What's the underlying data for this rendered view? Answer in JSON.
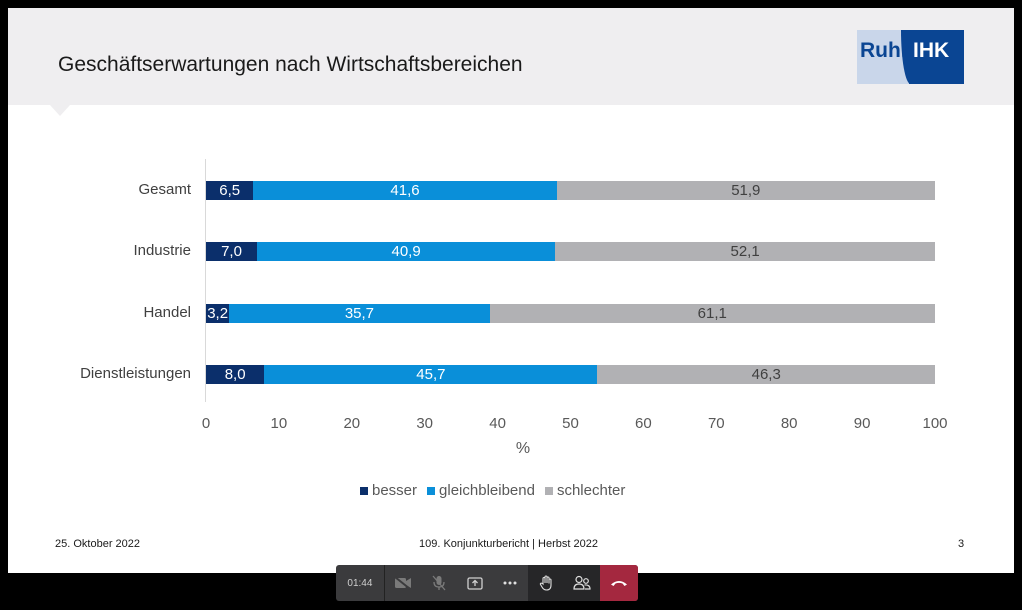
{
  "slide": {
    "title": "Geschäftserwartungen nach Wirtschaftsbereichen",
    "logo": {
      "left": "Ruhr",
      "right": "IHK"
    },
    "footer": {
      "date": "25. Oktober 2022",
      "center": "109. Konjunkturbericht | Herbst 2022",
      "page": "3"
    }
  },
  "chart_data": {
    "type": "bar",
    "orientation": "horizontal-stacked",
    "title": "Geschäftserwartungen nach Wirtschaftsbereichen",
    "categories": [
      "Gesamt",
      "Industrie",
      "Handel",
      "Dienstleistungen"
    ],
    "series": [
      {
        "name": "besser",
        "color": "#0b2f6b",
        "label_color": "#ffffff",
        "values": [
          6.5,
          7.0,
          3.2,
          8.0
        ],
        "labels": [
          "6,5",
          "7,0",
          "3,2",
          "8,0"
        ]
      },
      {
        "name": "gleichbleibend",
        "color": "#0a8fd9",
        "label_color": "#ffffff",
        "values": [
          41.6,
          40.9,
          35.7,
          45.7
        ],
        "labels": [
          "41,6",
          "40,9",
          "35,7",
          "45,7"
        ]
      },
      {
        "name": "schlechter",
        "color": "#b1b1b4",
        "label_color": "#404040",
        "values": [
          51.9,
          52.1,
          61.1,
          46.3
        ],
        "labels": [
          "51,9",
          "52,1",
          "61,1",
          "46,3"
        ]
      }
    ],
    "xlabel": "%",
    "ylabel": "",
    "xlim": [
      0,
      100
    ],
    "xticks": [
      "0",
      "10",
      "20",
      "30",
      "40",
      "50",
      "60",
      "70",
      "80",
      "90",
      "100"
    ],
    "grid": false,
    "legend_position": "bottom"
  },
  "toolbar": {
    "timer": "01:44",
    "buttons": [
      {
        "name": "camera-off",
        "label": "Camera"
      },
      {
        "name": "mic-off",
        "label": "Mute"
      },
      {
        "name": "share-screen",
        "label": "Share"
      },
      {
        "name": "more",
        "label": "More actions"
      },
      {
        "name": "raise-hand",
        "label": "Raise hand"
      },
      {
        "name": "participants",
        "label": "Participants"
      },
      {
        "name": "hang-up",
        "label": "Leave"
      }
    ]
  }
}
